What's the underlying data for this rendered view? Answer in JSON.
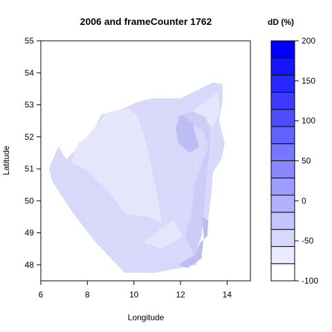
{
  "chart_data": {
    "type": "heatmap",
    "title": "2006 and frameCounter 1762",
    "xlabel": "Longitude",
    "ylabel": "Latitude",
    "xlim": [
      6,
      15
    ],
    "ylim": [
      47.5,
      55
    ],
    "x_ticks": [
      6,
      8,
      10,
      12,
      14
    ],
    "y_ticks": [
      48,
      49,
      50,
      51,
      52,
      53,
      54,
      55
    ],
    "grid": false,
    "legend": {
      "title": "dD (%)",
      "placement": "right",
      "ticks": [
        200,
        150,
        100,
        50,
        0,
        -50,
        -100
      ],
      "min": -100,
      "max": 200,
      "levels": 14
    },
    "colors": {
      "low": "#ffffff",
      "high": "#0000ff",
      "region_base": "#d6d6fb",
      "region_light": "#e4e4fc",
      "region_mid": "#c9c9f7",
      "region_dark": "#b9b9f3"
    },
    "regions": [
      {
        "level": "base",
        "points": [
          [
            7.1,
            51.3
          ],
          [
            8.2,
            52.1
          ],
          [
            8.6,
            52.7
          ],
          [
            9.4,
            52.85
          ],
          [
            10.2,
            53.1
          ],
          [
            10.8,
            53.2
          ],
          [
            12.0,
            53.2
          ],
          [
            13.4,
            53.7
          ],
          [
            13.8,
            53.65
          ],
          [
            13.8,
            53.1
          ],
          [
            13.65,
            52.5
          ],
          [
            13.9,
            51.8
          ],
          [
            13.75,
            51.3
          ],
          [
            13.4,
            50.9
          ],
          [
            13.3,
            50.1
          ],
          [
            13.2,
            49.5
          ],
          [
            12.9,
            49.1
          ],
          [
            12.75,
            48.7
          ],
          [
            12.7,
            48.0
          ],
          [
            11.6,
            47.85
          ],
          [
            10.9,
            47.75
          ],
          [
            9.6,
            47.75
          ],
          [
            8.3,
            48.75
          ],
          [
            7.4,
            49.6
          ],
          [
            6.95,
            50.1
          ],
          [
            6.5,
            50.6
          ],
          [
            6.35,
            51.0
          ],
          [
            6.75,
            51.7
          ],
          [
            7.1,
            51.3
          ]
        ]
      },
      {
        "level": "light",
        "points": [
          [
            7.3,
            51.2
          ],
          [
            7.9,
            51.0
          ],
          [
            8.9,
            50.3
          ],
          [
            9.6,
            49.6
          ],
          [
            10.6,
            49.5
          ],
          [
            11.2,
            49.3
          ],
          [
            11.0,
            50.2
          ],
          [
            10.6,
            51.6
          ],
          [
            10.2,
            52.6
          ],
          [
            9.8,
            52.9
          ],
          [
            8.8,
            52.75
          ],
          [
            8.0,
            52.0
          ],
          [
            7.6,
            51.8
          ],
          [
            7.3,
            51.2
          ]
        ]
      },
      {
        "level": "light",
        "points": [
          [
            12.3,
            52.7
          ],
          [
            12.9,
            53.0
          ],
          [
            13.6,
            53.4
          ],
          [
            13.7,
            52.8
          ],
          [
            13.4,
            52.3
          ],
          [
            12.9,
            52.6
          ],
          [
            12.3,
            52.7
          ]
        ]
      },
      {
        "level": "light",
        "points": [
          [
            10.4,
            48.7
          ],
          [
            11.1,
            49.1
          ],
          [
            11.7,
            49.4
          ],
          [
            12.1,
            48.9
          ],
          [
            11.2,
            48.5
          ],
          [
            10.4,
            48.7
          ]
        ]
      },
      {
        "level": "mid",
        "points": [
          [
            11.8,
            52.6
          ],
          [
            12.4,
            52.4
          ],
          [
            13.0,
            52.2
          ],
          [
            13.2,
            51.7
          ],
          [
            12.9,
            51.1
          ],
          [
            12.6,
            50.5
          ],
          [
            12.5,
            49.7
          ],
          [
            12.2,
            48.9
          ],
          [
            12.6,
            48.3
          ],
          [
            12.9,
            48.9
          ],
          [
            13.0,
            49.7
          ],
          [
            13.1,
            50.6
          ],
          [
            13.2,
            51.3
          ],
          [
            13.3,
            52.1
          ],
          [
            13.1,
            52.6
          ],
          [
            12.5,
            52.8
          ],
          [
            11.8,
            52.6
          ]
        ]
      },
      {
        "level": "dark",
        "points": [
          [
            12.0,
            52.7
          ],
          [
            12.5,
            52.45
          ],
          [
            12.8,
            51.7
          ],
          [
            12.4,
            51.5
          ],
          [
            11.9,
            51.8
          ],
          [
            11.8,
            52.3
          ],
          [
            12.0,
            52.7
          ]
        ]
      },
      {
        "level": "dark",
        "points": [
          [
            12.9,
            49.5
          ],
          [
            13.2,
            49.4
          ],
          [
            13.15,
            48.9
          ],
          [
            12.85,
            48.7
          ],
          [
            12.6,
            48.3
          ],
          [
            11.9,
            48.0
          ],
          [
            12.3,
            47.9
          ],
          [
            12.9,
            48.2
          ],
          [
            13.0,
            48.9
          ],
          [
            12.9,
            49.5
          ]
        ]
      }
    ]
  }
}
